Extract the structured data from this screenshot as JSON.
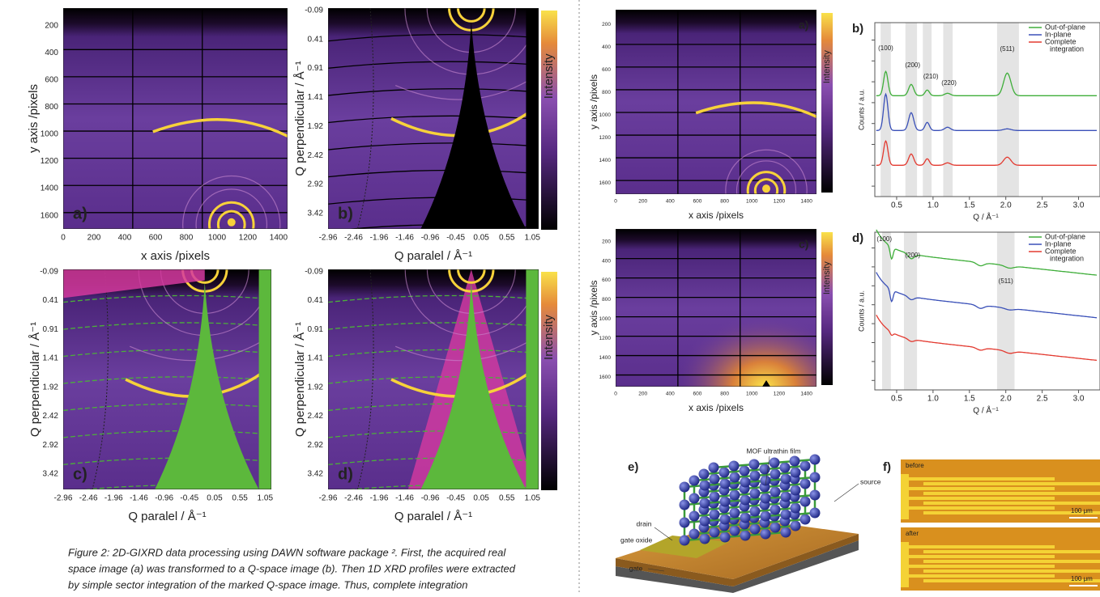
{
  "left_figure": {
    "panels": [
      {
        "label": "a)",
        "x_label": "x axis /pixels",
        "y_label": "y axis /pixels",
        "x_ticks": [
          "0",
          "200",
          "400",
          "600",
          "800",
          "1000",
          "1200",
          "1400"
        ],
        "y_ticks": [
          "200",
          "400",
          "600",
          "800",
          "1000",
          "1200",
          "1400",
          "1600"
        ]
      },
      {
        "label": "b)",
        "x_label": "Q paralel / Å⁻¹",
        "y_label": "Q perpendicular / Å⁻¹",
        "colorbar_label": "Intensity",
        "x_ticks": [
          "-2.96",
          "-2.46",
          "-1.96",
          "-1.46",
          "-0.96",
          "-0.45",
          "0.05",
          "0.55",
          "1.05"
        ],
        "y_ticks": [
          "-0.09",
          "0.41",
          "0.91",
          "1.41",
          "1.92",
          "2.42",
          "2.92",
          "3.42"
        ]
      },
      {
        "label": "c)",
        "x_label": "Q paralel / Å⁻¹",
        "y_label": "Q perpendicular / Å⁻¹",
        "x_ticks": [
          "-2.96",
          "-2.46",
          "-1.96",
          "-1.46",
          "-0.96",
          "-0.45",
          "0.05",
          "0.55",
          "1.05"
        ],
        "y_ticks": [
          "-0.09",
          "0.41",
          "0.91",
          "1.41",
          "1.92",
          "2.42",
          "2.92",
          "3.42"
        ]
      },
      {
        "label": "d)",
        "x_label": "Q paralel / Å⁻¹",
        "y_label": "Q perpendicular / Å⁻¹",
        "colorbar_label": "Intensity",
        "x_ticks": [
          "-2.96",
          "-2.46",
          "-1.96",
          "-1.46",
          "-0.96",
          "-0.45",
          "0.05",
          "0.55",
          "1.05"
        ],
        "y_ticks": [
          "-0.09",
          "0.41",
          "0.91",
          "1.41",
          "1.92",
          "2.42",
          "2.92",
          "3.42"
        ]
      }
    ],
    "caption": [
      "Figure 2: 2D-GIXRD data processing using DAWN software package ². First, the acquired real",
      "space image (a) was transformed to a Q-space image (b). Then 1D XRD profiles were extracted",
      "by simple sector integration of the marked Q-space image. Thus, complete integration"
    ]
  },
  "right_figure": {
    "panel_a": {
      "label": "a)",
      "x_label": "x axis /pixels",
      "y_label": "y axis /pixels",
      "colorbar_label": "Intensity",
      "x_ticks": [
        "0",
        "200",
        "400",
        "600",
        "800",
        "1000",
        "1200",
        "1400"
      ],
      "y_ticks": [
        "200",
        "400",
        "600",
        "800",
        "1000",
        "1200",
        "1400",
        "1600"
      ]
    },
    "panel_b": {
      "label": "b)",
      "x_label": "Q / Å⁻¹",
      "y_label": "Counts / a.u.",
      "x_ticks": [
        "0.5",
        "1.0",
        "1.5",
        "2.0",
        "2.5",
        "3.0"
      ],
      "legend": [
        {
          "lines": [
            "Out-of-plane"
          ]
        },
        {
          "lines": [
            "In-plane"
          ]
        },
        {
          "lines": [
            "Complete",
            "integration"
          ]
        }
      ],
      "peaks": [
        "(100)",
        "(200)",
        "(210)",
        "(220)",
        "(511)"
      ]
    },
    "panel_c": {
      "label": "c)",
      "x_label": "x axis /pixels",
      "y_label": "y axis /pixels",
      "colorbar_label": "Intensity",
      "x_ticks": [
        "0",
        "200",
        "400",
        "600",
        "800",
        "1000",
        "1200",
        "1400"
      ],
      "y_ticks": [
        "200",
        "400",
        "600",
        "800",
        "1000",
        "1200",
        "1400",
        "1600"
      ]
    },
    "panel_d": {
      "label": "d)",
      "x_label": "Q / Å⁻¹",
      "y_label": "Counts / a.u.",
      "x_ticks": [
        "0.5",
        "1.0",
        "1.5",
        "2.0",
        "2.5",
        "3.0"
      ],
      "legend": [
        {
          "lines": [
            "Out-of-plane"
          ]
        },
        {
          "lines": [
            "In-plane"
          ]
        },
        {
          "lines": [
            "Complete",
            "integration"
          ]
        }
      ],
      "peaks": [
        "(100)",
        "(200)",
        "(511)"
      ]
    },
    "panel_e": {
      "label": "e)",
      "annotations": [
        "MOF ultrathin film",
        "drain",
        "source",
        "gate oxide",
        "gate"
      ]
    },
    "panel_f": {
      "label": "f)",
      "images": [
        {
          "label": "before",
          "scale": "100 μm"
        },
        {
          "label": "after",
          "scale": "100 μm"
        }
      ]
    }
  }
}
